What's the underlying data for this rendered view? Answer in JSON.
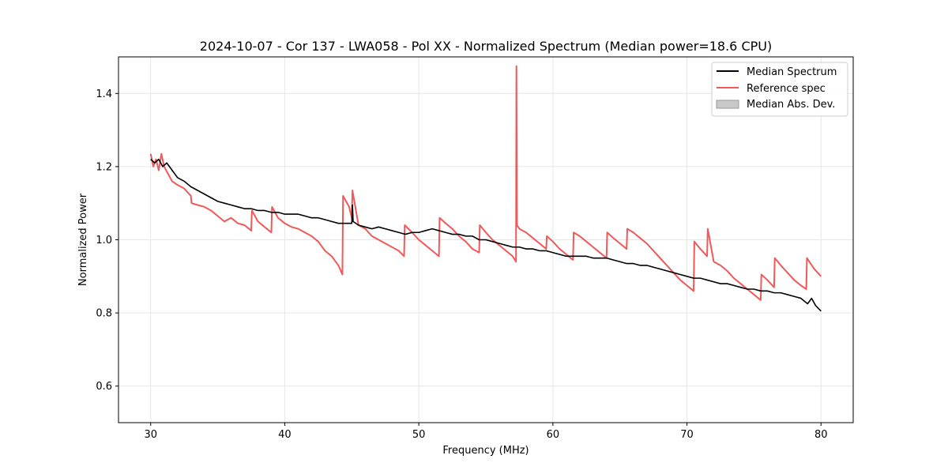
{
  "chart_data": {
    "type": "line",
    "title": "2024-10-07 - Cor 137 - LWA058 - Pol XX - Normalized Spectrum (Median power=18.6 CPU)",
    "xlabel": "Frequency (MHz)",
    "ylabel": "Normalized Power",
    "xlim": [
      27.6,
      82.4
    ],
    "ylim": [
      0.5,
      1.5
    ],
    "xticks": [
      30,
      40,
      50,
      60,
      70,
      80
    ],
    "yticks": [
      0.6,
      0.8,
      1.0,
      1.2,
      1.4
    ],
    "xtick_labels": [
      "30",
      "40",
      "50",
      "60",
      "70",
      "80"
    ],
    "ytick_labels": [
      "0.6",
      "0.8",
      "1.0",
      "1.2",
      "1.4"
    ],
    "grid": true,
    "legend_position": "top-right",
    "legend": [
      "Median Spectrum",
      "Reference spec",
      "Median Abs. Dev."
    ],
    "colors": {
      "median": "#000000",
      "reference": "#f0595a",
      "mad": "#c8c8c8",
      "grid": "#e6e6e6"
    },
    "series": [
      {
        "name": "Median Spectrum",
        "x": [
          30.0,
          30.3,
          30.6,
          30.9,
          31.2,
          31.6,
          32.0,
          32.5,
          33.0,
          33.5,
          34.0,
          34.5,
          35.0,
          35.5,
          36.0,
          36.5,
          37.0,
          37.5,
          38.0,
          38.5,
          39.0,
          39.5,
          40.0,
          40.5,
          41.0,
          41.5,
          42.0,
          42.5,
          43.0,
          43.5,
          44.0,
          44.5,
          45.0,
          45.05,
          45.1,
          45.5,
          46.0,
          46.5,
          47.0,
          47.5,
          48.0,
          48.5,
          49.0,
          49.5,
          50.0,
          50.5,
          51.0,
          51.5,
          52.0,
          52.5,
          53.0,
          53.5,
          54.0,
          54.5,
          55.0,
          55.5,
          56.0,
          56.5,
          57.0,
          57.5,
          58.0,
          58.5,
          59.0,
          59.5,
          60.0,
          60.5,
          61.0,
          61.5,
          62.0,
          62.5,
          63.0,
          63.5,
          64.0,
          64.5,
          65.0,
          65.5,
          66.0,
          66.5,
          67.0,
          67.5,
          68.0,
          68.5,
          69.0,
          69.5,
          70.0,
          70.5,
          71.0,
          71.5,
          72.0,
          72.5,
          73.0,
          73.5,
          74.0,
          74.5,
          75.0,
          75.5,
          76.0,
          76.5,
          77.0,
          77.5,
          78.0,
          78.5,
          79.0,
          79.3,
          79.6,
          80.0
        ],
        "values": [
          1.22,
          1.21,
          1.22,
          1.2,
          1.21,
          1.19,
          1.17,
          1.16,
          1.145,
          1.135,
          1.125,
          1.115,
          1.105,
          1.1,
          1.095,
          1.09,
          1.085,
          1.085,
          1.08,
          1.08,
          1.075,
          1.075,
          1.07,
          1.07,
          1.07,
          1.065,
          1.06,
          1.06,
          1.055,
          1.05,
          1.045,
          1.045,
          1.045,
          1.095,
          1.05,
          1.04,
          1.035,
          1.03,
          1.035,
          1.03,
          1.025,
          1.02,
          1.015,
          1.02,
          1.02,
          1.025,
          1.03,
          1.025,
          1.02,
          1.015,
          1.015,
          1.01,
          1.01,
          1.0,
          1.0,
          0.995,
          0.99,
          0.985,
          0.98,
          0.98,
          0.975,
          0.975,
          0.97,
          0.97,
          0.965,
          0.96,
          0.955,
          0.955,
          0.955,
          0.955,
          0.95,
          0.95,
          0.95,
          0.945,
          0.94,
          0.935,
          0.935,
          0.93,
          0.93,
          0.925,
          0.92,
          0.915,
          0.91,
          0.905,
          0.9,
          0.895,
          0.895,
          0.89,
          0.885,
          0.88,
          0.88,
          0.875,
          0.87,
          0.865,
          0.865,
          0.86,
          0.86,
          0.855,
          0.855,
          0.85,
          0.845,
          0.84,
          0.825,
          0.84,
          0.82,
          0.805
        ]
      },
      {
        "name": "Reference spec",
        "x": [
          30.0,
          30.2,
          30.4,
          30.6,
          30.8,
          31.0,
          31.3,
          31.6,
          32.0,
          32.5,
          33.0,
          33.05,
          33.5,
          34.0,
          34.5,
          35.0,
          35.5,
          36.0,
          36.5,
          37.0,
          37.5,
          37.55,
          38.0,
          38.5,
          39.0,
          39.05,
          39.5,
          40.0,
          40.5,
          41.0,
          41.5,
          42.0,
          42.5,
          43.0,
          43.5,
          44.0,
          44.3,
          44.35,
          44.8,
          45.0,
          45.05,
          45.5,
          46.0,
          46.5,
          47.0,
          47.5,
          48.0,
          48.5,
          48.9,
          48.95,
          49.5,
          50.0,
          50.5,
          51.0,
          51.5,
          51.55,
          52.0,
          52.5,
          53.0,
          53.5,
          54.0,
          54.5,
          54.55,
          55.0,
          55.5,
          56.0,
          56.5,
          57.0,
          57.25,
          57.28,
          57.32,
          57.5,
          58.0,
          58.5,
          59.0,
          59.5,
          59.55,
          60.0,
          60.5,
          61.0,
          61.5,
          61.55,
          62.0,
          62.5,
          63.0,
          63.5,
          64.0,
          64.05,
          64.5,
          65.0,
          65.5,
          65.55,
          66.0,
          66.5,
          67.0,
          67.5,
          68.0,
          68.5,
          69.0,
          69.5,
          70.0,
          70.5,
          70.55,
          71.0,
          71.5,
          71.55,
          72.0,
          72.5,
          73.0,
          73.5,
          74.0,
          74.5,
          75.0,
          75.5,
          75.55,
          76.0,
          76.5,
          76.55,
          77.0,
          77.5,
          78.0,
          78.5,
          78.9,
          78.95,
          79.5,
          80.0
        ],
        "values": [
          1.235,
          1.2,
          1.22,
          1.19,
          1.235,
          1.2,
          1.18,
          1.16,
          1.15,
          1.14,
          1.12,
          1.1,
          1.095,
          1.09,
          1.08,
          1.065,
          1.05,
          1.06,
          1.045,
          1.04,
          1.025,
          1.08,
          1.05,
          1.035,
          1.02,
          1.09,
          1.06,
          1.045,
          1.035,
          1.03,
          1.02,
          1.01,
          0.995,
          0.97,
          0.955,
          0.93,
          0.905,
          1.12,
          1.09,
          1.06,
          1.135,
          1.04,
          1.03,
          1.01,
          1.0,
          0.99,
          0.98,
          0.97,
          0.955,
          1.04,
          1.02,
          1.0,
          0.985,
          0.97,
          0.955,
          1.06,
          1.045,
          1.03,
          1.01,
          0.995,
          0.975,
          0.965,
          1.04,
          1.02,
          1.0,
          0.985,
          0.97,
          0.955,
          0.94,
          1.475,
          1.04,
          1.03,
          1.02,
          1.005,
          0.99,
          0.975,
          1.01,
          0.995,
          0.975,
          0.96,
          0.945,
          1.02,
          1.01,
          0.995,
          0.98,
          0.965,
          0.95,
          1.02,
          1.005,
          0.99,
          0.975,
          1.03,
          1.02,
          1.005,
          0.99,
          0.97,
          0.95,
          0.93,
          0.91,
          0.89,
          0.875,
          0.86,
          0.995,
          0.975,
          0.955,
          1.03,
          0.94,
          0.93,
          0.915,
          0.895,
          0.88,
          0.865,
          0.85,
          0.835,
          0.905,
          0.89,
          0.87,
          0.95,
          0.93,
          0.91,
          0.89,
          0.875,
          0.865,
          0.95,
          0.92,
          0.9
        ]
      }
    ]
  }
}
